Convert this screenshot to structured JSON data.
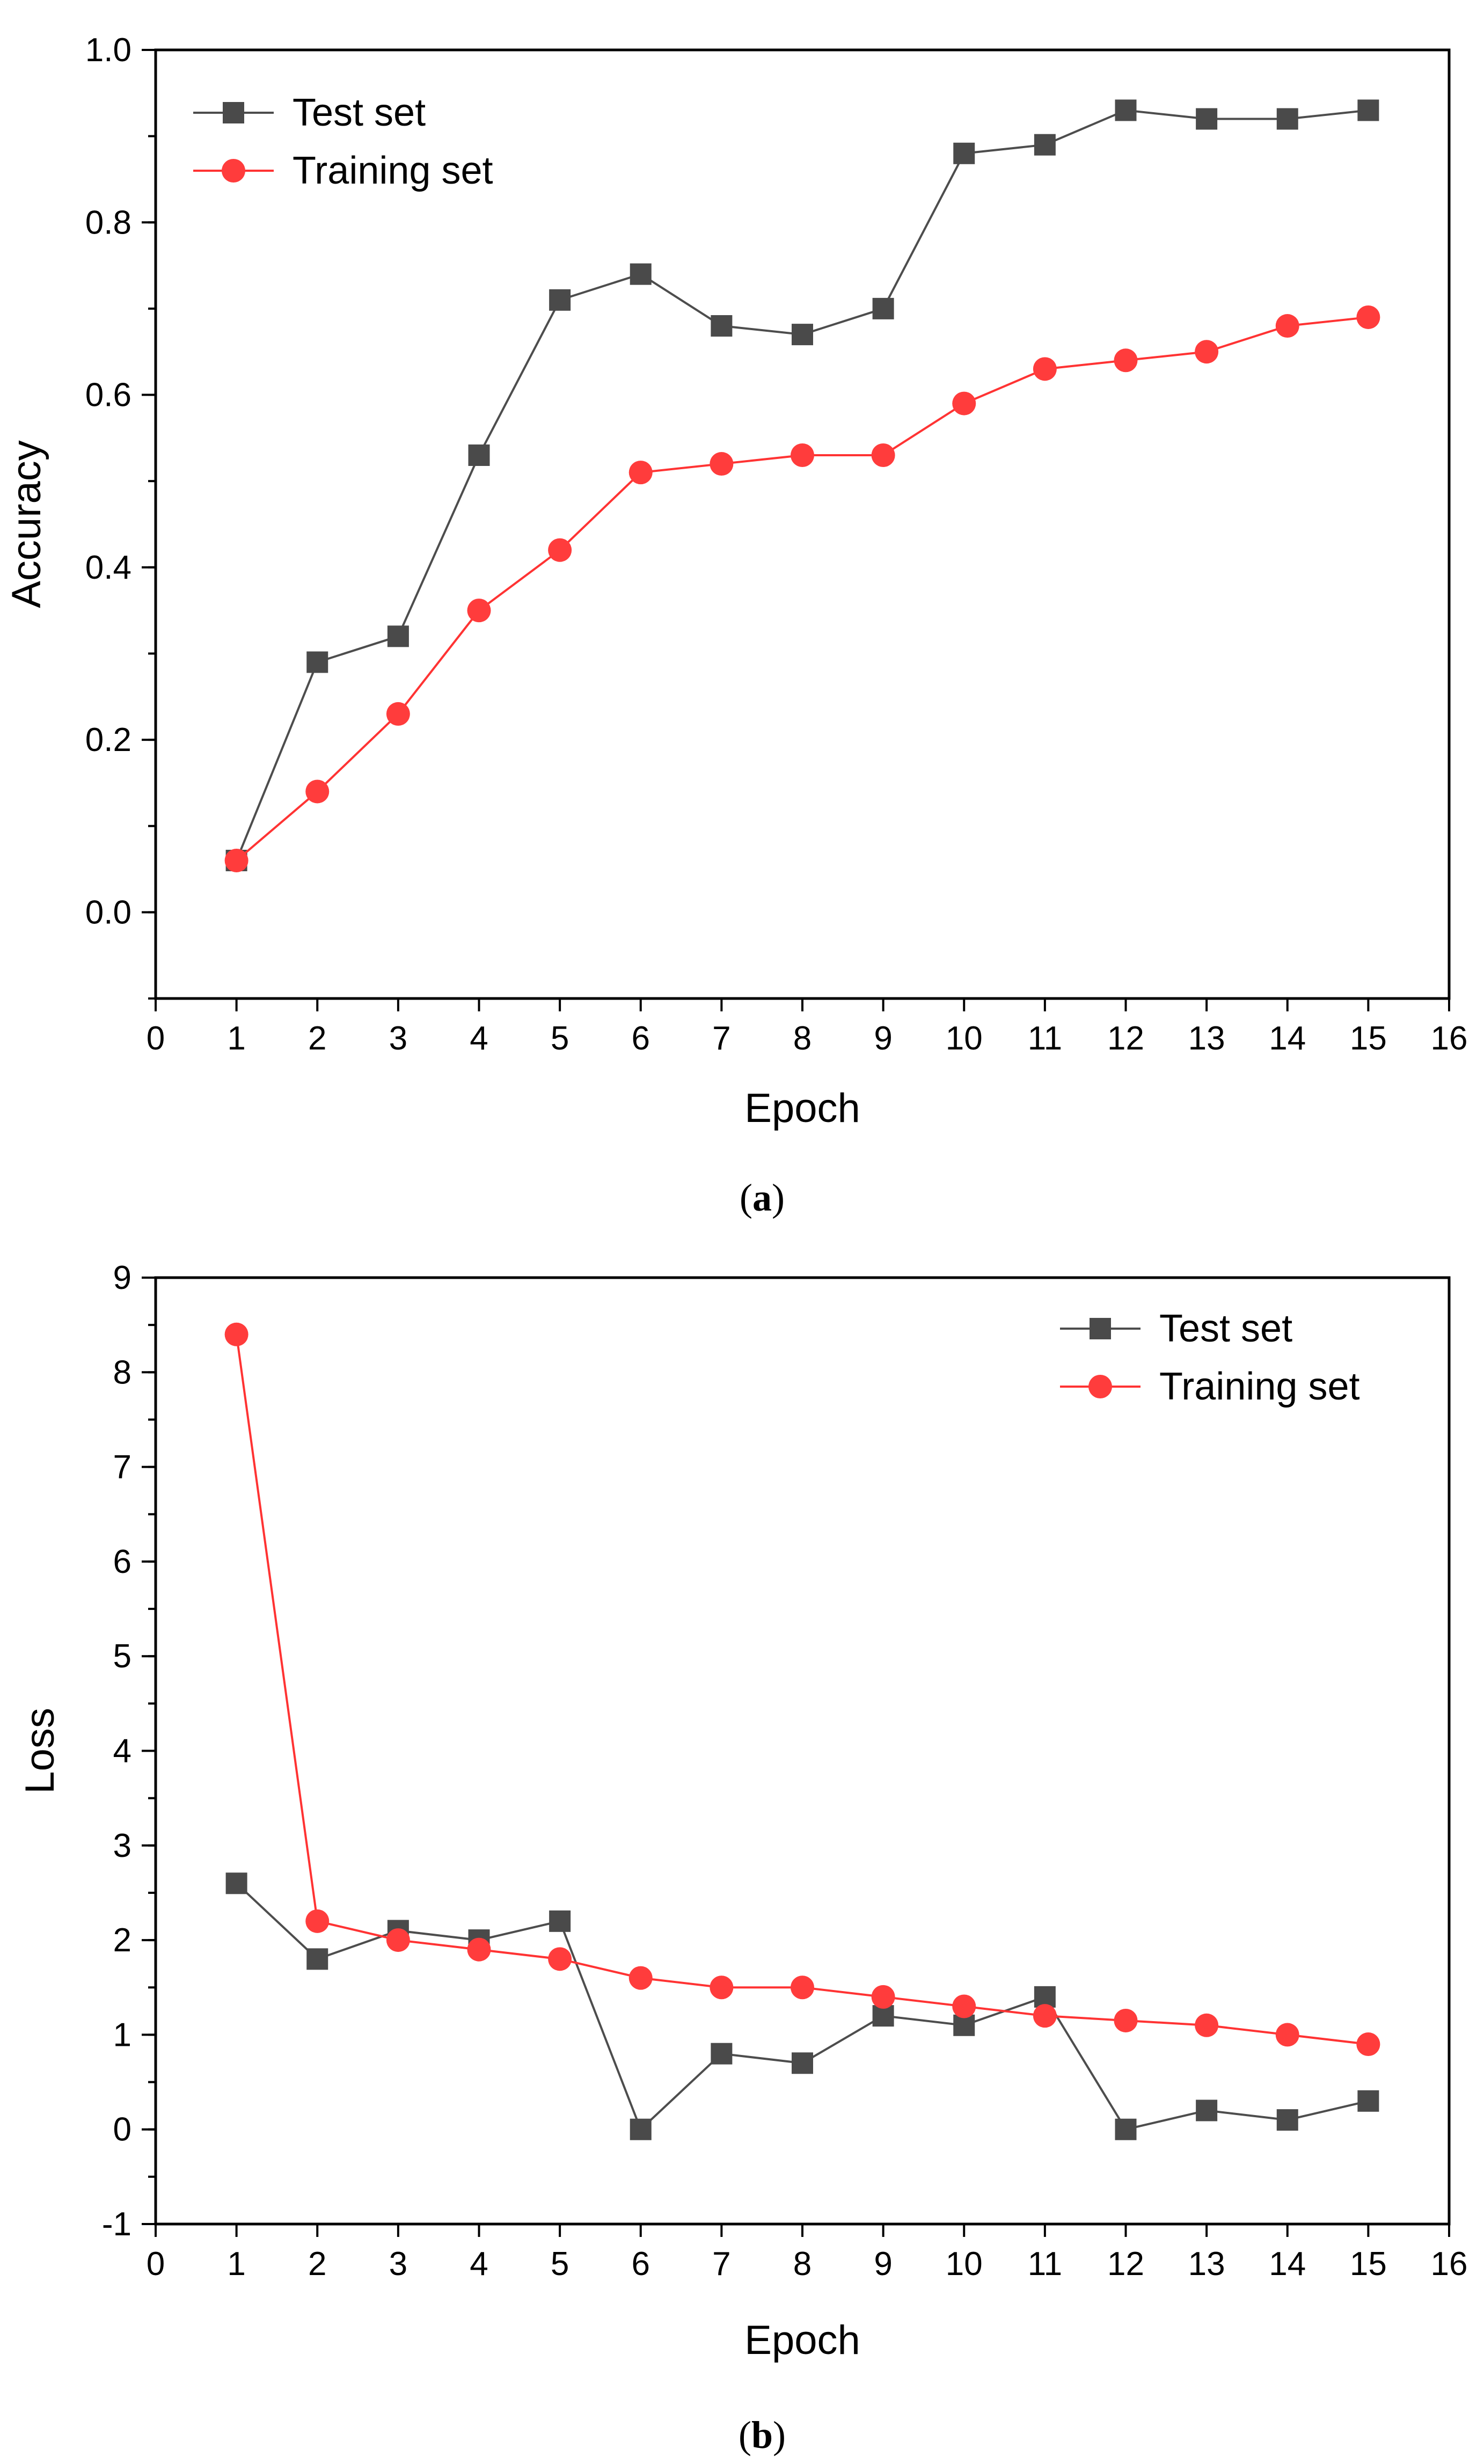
{
  "figure": {
    "panels": [
      {
        "caption_open": "(",
        "caption_letter": "a",
        "caption_close": ")"
      },
      {
        "caption_open": "(",
        "caption_letter": "b",
        "caption_close": ")"
      }
    ]
  },
  "colors": {
    "test": "#4d4d4d",
    "test_marker": "#4a4a4a",
    "train": "#ff3333",
    "train_marker": "#ff3c3c",
    "axis": "#000000"
  },
  "chart_data": [
    {
      "type": "line",
      "title": "",
      "xlabel": "Epoch",
      "ylabel": "Accuracy",
      "xlim": [
        0,
        16
      ],
      "ylim": [
        -0.1,
        1.0
      ],
      "x_ticks": [
        0,
        1,
        2,
        3,
        4,
        5,
        6,
        7,
        8,
        9,
        10,
        11,
        12,
        13,
        14,
        15,
        16
      ],
      "x_tick_labels": [
        "0",
        "1",
        "2",
        "3",
        "4",
        "5",
        "6",
        "7",
        "8",
        "9",
        "10",
        "11",
        "12",
        "13",
        "14",
        "15",
        "16"
      ],
      "y_ticks": [
        0.0,
        0.2,
        0.4,
        0.6,
        0.8,
        1.0
      ],
      "y_tick_labels": [
        "0.0",
        "0.2",
        "0.4",
        "0.6",
        "0.8",
        "1.0"
      ],
      "y_minor_step": 0.1,
      "legend_position": "top-left",
      "x": [
        1,
        2,
        3,
        4,
        5,
        6,
        7,
        8,
        9,
        10,
        11,
        12,
        13,
        14,
        15
      ],
      "series": [
        {
          "name": "Test set",
          "marker": "square",
          "color_key": "test",
          "values": [
            0.06,
            0.29,
            0.32,
            0.53,
            0.71,
            0.74,
            0.68,
            0.67,
            0.7,
            0.88,
            0.89,
            0.93,
            0.92,
            0.92,
            0.93
          ]
        },
        {
          "name": "Training set",
          "marker": "circle",
          "color_key": "train",
          "values": [
            0.06,
            0.14,
            0.23,
            0.35,
            0.42,
            0.51,
            0.52,
            0.53,
            0.53,
            0.59,
            0.63,
            0.64,
            0.65,
            0.68,
            0.69
          ]
        }
      ]
    },
    {
      "type": "line",
      "title": "",
      "xlabel": "Epoch",
      "ylabel": "Loss",
      "xlim": [
        0,
        16
      ],
      "ylim": [
        -1,
        9
      ],
      "x_ticks": [
        0,
        1,
        2,
        3,
        4,
        5,
        6,
        7,
        8,
        9,
        10,
        11,
        12,
        13,
        14,
        15,
        16
      ],
      "x_tick_labels": [
        "0",
        "1",
        "2",
        "3",
        "4",
        "5",
        "6",
        "7",
        "8",
        "9",
        "10",
        "11",
        "12",
        "13",
        "14",
        "15",
        "16"
      ],
      "y_ticks": [
        -1,
        0,
        1,
        2,
        3,
        4,
        5,
        6,
        7,
        8,
        9
      ],
      "y_tick_labels": [
        "-1",
        "0",
        "1",
        "2",
        "3",
        "4",
        "5",
        "6",
        "7",
        "8",
        "9"
      ],
      "y_minor_step": 0.5,
      "legend_position": "top-right",
      "x": [
        1,
        2,
        3,
        4,
        5,
        6,
        7,
        8,
        9,
        10,
        11,
        12,
        13,
        14,
        15
      ],
      "series": [
        {
          "name": "Test set",
          "marker": "square",
          "color_key": "test",
          "values": [
            2.6,
            1.8,
            2.1,
            2.0,
            2.2,
            0.0,
            0.8,
            0.7,
            1.2,
            1.1,
            1.4,
            0.0,
            0.2,
            0.1,
            0.3
          ]
        },
        {
          "name": "Training set",
          "marker": "circle",
          "color_key": "train",
          "values": [
            8.4,
            2.2,
            2.0,
            1.9,
            1.8,
            1.6,
            1.5,
            1.5,
            1.4,
            1.3,
            1.2,
            1.15,
            1.1,
            1.0,
            0.9
          ]
        }
      ]
    }
  ]
}
